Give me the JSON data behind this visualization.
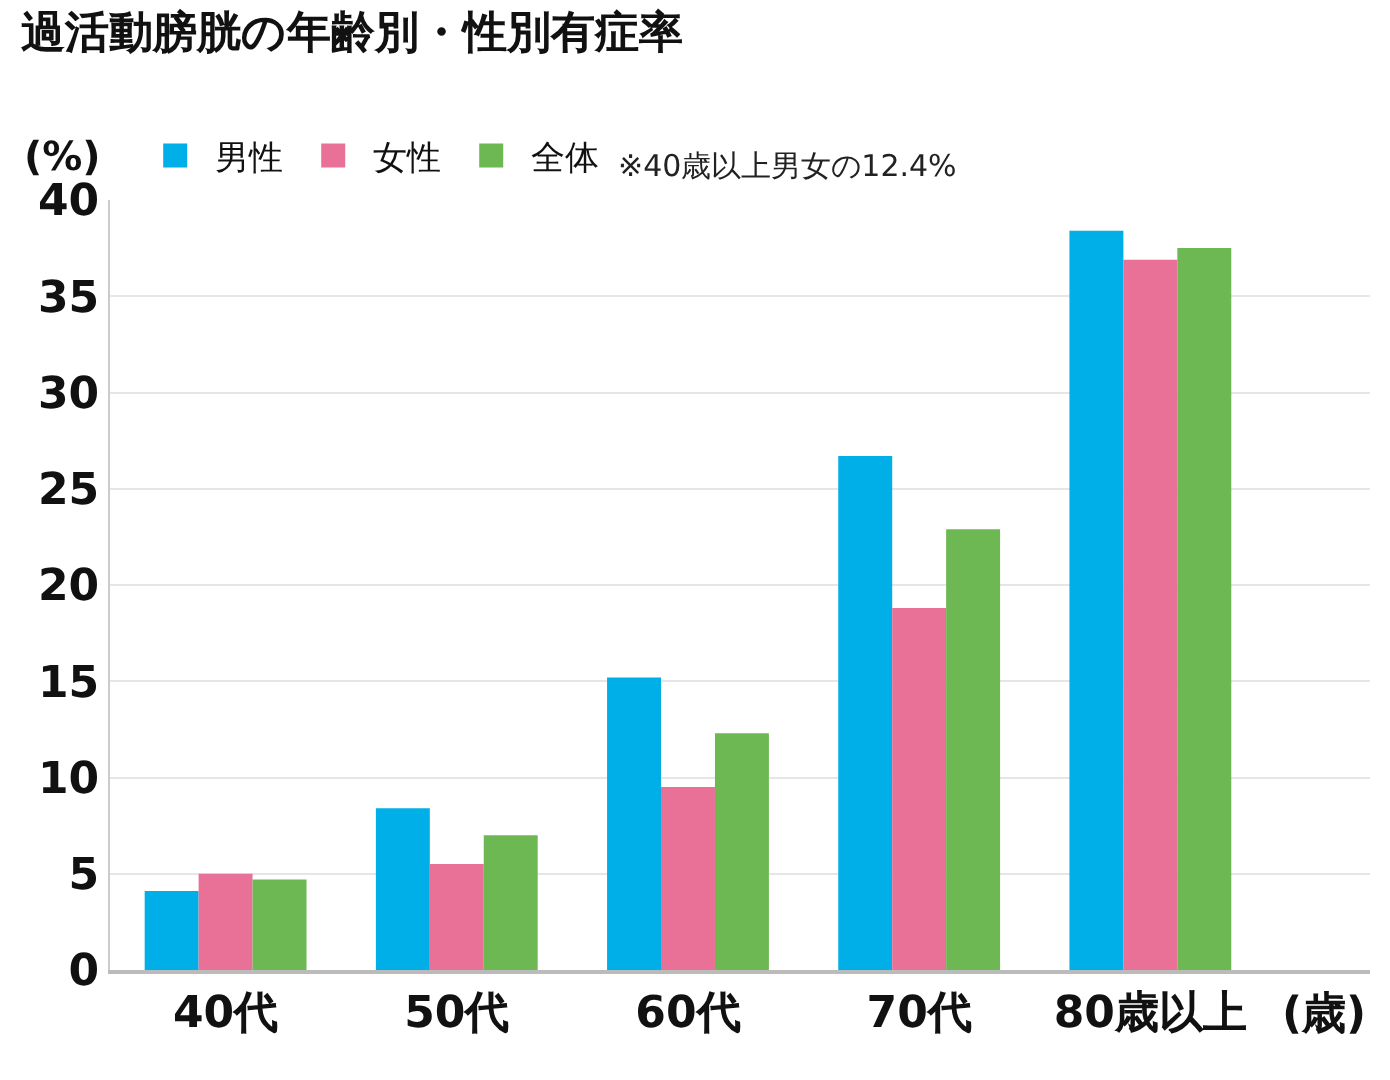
{
  "chart_data": {
    "type": "bar",
    "title": "過活動膀胱の年齢別・性別有症率",
    "categories": [
      "40代",
      "50代",
      "60代",
      "70代",
      "80歳以上"
    ],
    "series": [
      {
        "name": "男性",
        "color": "#00aee8",
        "values": [
          4.1,
          8.4,
          15.2,
          26.7,
          38.4
        ]
      },
      {
        "name": "女性",
        "color": "#e97096",
        "values": [
          5.0,
          5.5,
          9.5,
          18.8,
          36.9
        ]
      },
      {
        "name": "全体",
        "color": "#6db852",
        "values": [
          4.7,
          7.0,
          12.3,
          22.9,
          37.5
        ]
      }
    ],
    "xlabel": "(歳)",
    "ylabel": "(%)",
    "annotations": [
      "※40歳以上男女の12.4%"
    ],
    "ylim": [
      0,
      40
    ],
    "yticks": [
      0,
      5,
      10,
      15,
      20,
      25,
      30,
      35,
      40
    ],
    "grid": "y",
    "legend": "top left"
  }
}
